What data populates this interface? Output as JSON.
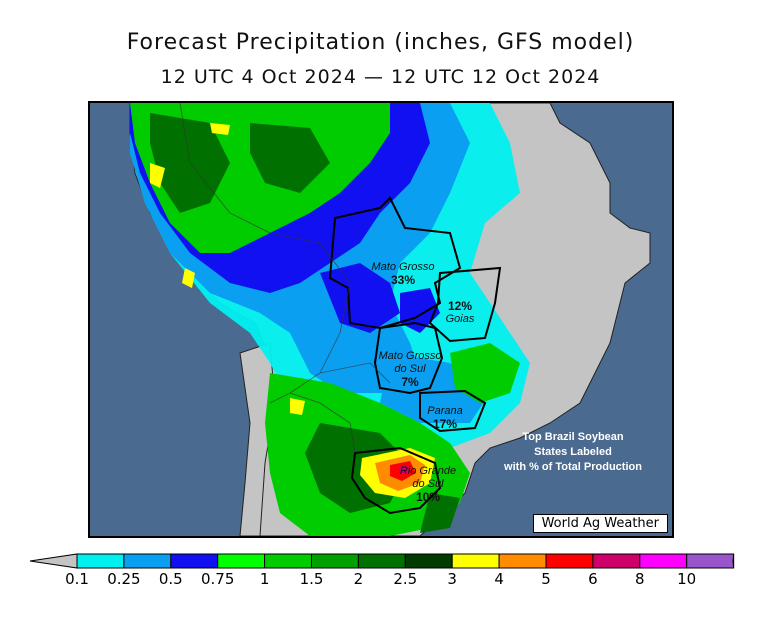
{
  "title": "Forecast Precipitation (inches, GFS model)",
  "subtitle": "12 UTC 4 Oct 2024 — 12 UTC 12 Oct 2024",
  "map": {
    "ocean_color": "#4a6a8f",
    "land_dry_color": "#c4c4c4",
    "states": [
      {
        "key": "mato_grosso",
        "name": "Mato Grosso",
        "percent": "33%"
      },
      {
        "key": "goias",
        "name": "Goias",
        "percent": "12%"
      },
      {
        "key": "mato_grosso_do_sul",
        "name": "Mato Grosso do Sul",
        "name_line1": "Mato Grosso",
        "name_line2": "do Sul",
        "percent": "7%"
      },
      {
        "key": "parana",
        "name": "Parana",
        "percent": "17%"
      },
      {
        "key": "rio_grande_do_sul",
        "name": "Rio Grande do Sul",
        "name_line1": "Rio Grande",
        "name_line2": "do Sul",
        "percent": "10%"
      }
    ],
    "note_line1": "Top Brazil Soybean",
    "note_line2": "States Labeled",
    "note_line3": "with % of Total Production",
    "credit": "World Ag Weather"
  },
  "legend": {
    "units": "inches",
    "bins": [
      {
        "label": "0.1",
        "color": "#00f0f0"
      },
      {
        "label": "0.25",
        "color": "#0a9ff0"
      },
      {
        "label": "0.5",
        "color": "#1010f0"
      },
      {
        "label": "0.75",
        "color": "#00ff00"
      },
      {
        "label": "1",
        "color": "#00cc00"
      },
      {
        "label": "1.5",
        "color": "#00a000"
      },
      {
        "label": "2",
        "color": "#007000"
      },
      {
        "label": "2.5",
        "color": "#003c00"
      },
      {
        "label": "3",
        "color": "#ffff00"
      },
      {
        "label": "4",
        "color": "#ff8c00"
      },
      {
        "label": "5",
        "color": "#ff0000"
      },
      {
        "label": "6",
        "color": "#d0006a"
      },
      {
        "label": "8",
        "color": "#ff00ff"
      },
      {
        "label": "10",
        "color": "#9955cc"
      }
    ],
    "below_color": "#c4c4c4",
    "above_color": "#ffffff"
  }
}
